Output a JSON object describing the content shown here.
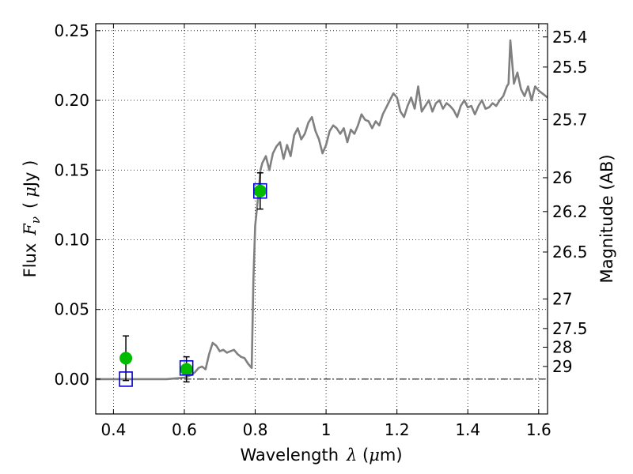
{
  "chart_data": {
    "type": "line",
    "xlabel": "Wavelength",
    "xlabel_symbol": "λ",
    "xlabel_unit_open": " (",
    "xlabel_unit_mu": "μ",
    "xlabel_unit_rest": "m)",
    "ylabel": "Flux",
    "ylabel_symbol": "F",
    "ylabel_subscript": "ν",
    "ylabel_unit_open": "(",
    "ylabel_unit_mu": "μ",
    "ylabel_unit_rest": "Jy )",
    "y2label": "Magnitude (AB)",
    "xlim": [
      0.35,
      1.625
    ],
    "ylim": [
      -0.025,
      0.255
    ],
    "grid": true,
    "x_ticks": [
      0.4,
      0.6,
      0.8,
      1.0,
      1.2,
      1.4,
      1.6
    ],
    "x_tick_labels": [
      "0.4",
      "0.6",
      "0.8",
      "1",
      "1.2",
      "1.4",
      "1.6"
    ],
    "y_ticks": [
      0.0,
      0.05,
      0.1,
      0.15,
      0.2,
      0.25
    ],
    "y_tick_labels": [
      "0.00",
      "0.05",
      "0.10",
      "0.15",
      "0.20",
      "0.25"
    ],
    "y2_ticks": [
      {
        "flux": 0.2455,
        "label": "25.4"
      },
      {
        "flux": 0.2239,
        "label": "25.5"
      },
      {
        "flux": 0.1862,
        "label": "25.7"
      },
      {
        "flux": 0.1445,
        "label": "26"
      },
      {
        "flux": 0.1202,
        "label": "26.2"
      },
      {
        "flux": 0.0912,
        "label": "26.5"
      },
      {
        "flux": 0.0575,
        "label": "27"
      },
      {
        "flux": 0.0363,
        "label": "27.5"
      },
      {
        "flux": 0.0229,
        "label": "28"
      },
      {
        "flux": 0.0091,
        "label": "29"
      }
    ],
    "series": [
      {
        "type": "line",
        "color": "#808080",
        "x": [
          0.35,
          0.4,
          0.45,
          0.5,
          0.55,
          0.6,
          0.61,
          0.62,
          0.63,
          0.64,
          0.65,
          0.66,
          0.67,
          0.68,
          0.69,
          0.7,
          0.71,
          0.72,
          0.73,
          0.74,
          0.75,
          0.76,
          0.77,
          0.78,
          0.79,
          0.795,
          0.8,
          0.81,
          0.815,
          0.82,
          0.83,
          0.84,
          0.85,
          0.86,
          0.87,
          0.88,
          0.89,
          0.9,
          0.91,
          0.92,
          0.93,
          0.94,
          0.95,
          0.96,
          0.97,
          0.98,
          0.99,
          1.0,
          1.01,
          1.02,
          1.03,
          1.04,
          1.05,
          1.06,
          1.07,
          1.08,
          1.09,
          1.1,
          1.11,
          1.12,
          1.13,
          1.14,
          1.15,
          1.16,
          1.17,
          1.18,
          1.19,
          1.2,
          1.21,
          1.22,
          1.23,
          1.24,
          1.25,
          1.26,
          1.27,
          1.28,
          1.29,
          1.3,
          1.31,
          1.32,
          1.33,
          1.34,
          1.35,
          1.36,
          1.37,
          1.38,
          1.39,
          1.4,
          1.41,
          1.42,
          1.43,
          1.44,
          1.45,
          1.46,
          1.47,
          1.48,
          1.49,
          1.5,
          1.51,
          1.515,
          1.52,
          1.53,
          1.54,
          1.55,
          1.56,
          1.57,
          1.58,
          1.59,
          1.6,
          1.61,
          1.625
        ],
        "y": [
          0.0,
          0.0,
          0.0,
          0.0,
          0.0,
          0.001,
          0.002,
          0.003,
          0.005,
          0.008,
          0.009,
          0.007,
          0.018,
          0.026,
          0.024,
          0.02,
          0.021,
          0.019,
          0.02,
          0.021,
          0.018,
          0.016,
          0.015,
          0.011,
          0.008,
          0.072,
          0.11,
          0.135,
          0.15,
          0.155,
          0.16,
          0.15,
          0.162,
          0.167,
          0.17,
          0.158,
          0.168,
          0.16,
          0.175,
          0.18,
          0.172,
          0.176,
          0.184,
          0.188,
          0.178,
          0.172,
          0.162,
          0.168,
          0.178,
          0.182,
          0.18,
          0.176,
          0.18,
          0.17,
          0.179,
          0.176,
          0.182,
          0.19,
          0.186,
          0.185,
          0.18,
          0.185,
          0.182,
          0.19,
          0.195,
          0.2,
          0.205,
          0.202,
          0.192,
          0.188,
          0.196,
          0.202,
          0.194,
          0.21,
          0.192,
          0.196,
          0.2,
          0.192,
          0.198,
          0.2,
          0.194,
          0.198,
          0.196,
          0.193,
          0.188,
          0.196,
          0.2,
          0.195,
          0.196,
          0.19,
          0.196,
          0.2,
          0.194,
          0.195,
          0.198,
          0.196,
          0.2,
          0.203,
          0.21,
          0.212,
          0.243,
          0.212,
          0.22,
          0.208,
          0.203,
          0.21,
          0.2,
          0.21,
          0.207,
          0.205,
          0.202
        ]
      },
      {
        "type": "scatter",
        "marker": "circle",
        "color": "#00bb00",
        "x": [
          0.435,
          0.606,
          0.814
        ],
        "y": [
          0.015,
          0.007,
          0.135
        ],
        "yerr": [
          0.016,
          0.009,
          0.013
        ]
      },
      {
        "type": "scatter",
        "marker": "square-open",
        "color": "#0000cc",
        "x": [
          0.435,
          0.606,
          0.814
        ],
        "y": [
          0.0,
          0.008,
          0.135
        ]
      }
    ],
    "zero_line": {
      "y": 0.0,
      "style": "dashdot"
    }
  }
}
